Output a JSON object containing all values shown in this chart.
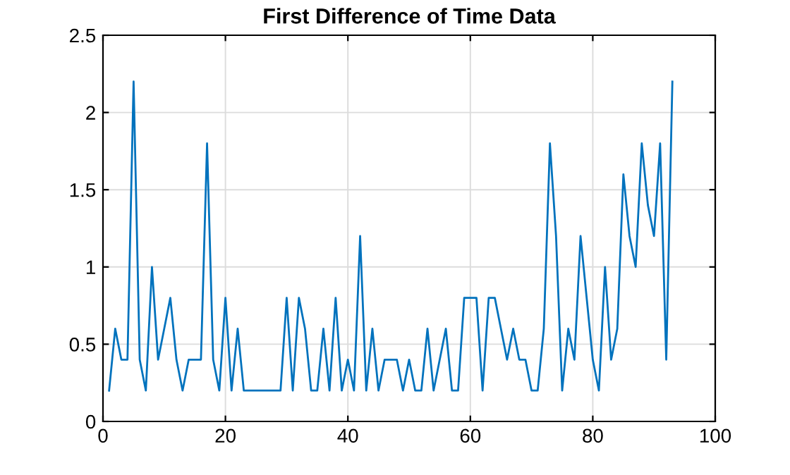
{
  "chart_data": {
    "type": "line",
    "title": "First Difference of Time Data",
    "x": [
      1,
      2,
      3,
      4,
      5,
      6,
      7,
      8,
      9,
      10,
      11,
      12,
      13,
      14,
      15,
      16,
      17,
      18,
      19,
      20,
      21,
      22,
      23,
      24,
      25,
      26,
      27,
      28,
      29,
      30,
      31,
      32,
      33,
      34,
      35,
      36,
      37,
      38,
      39,
      40,
      41,
      42,
      43,
      44,
      45,
      46,
      47,
      48,
      49,
      50,
      51,
      52,
      53,
      54,
      55,
      56,
      57,
      58,
      59,
      60,
      61,
      62,
      63,
      64,
      65,
      66,
      67,
      68,
      69,
      70,
      71,
      72,
      73,
      74,
      75,
      76,
      77,
      78,
      79,
      80,
      81,
      82,
      83,
      84,
      85,
      86,
      87,
      88,
      89,
      90,
      91,
      92,
      93
    ],
    "series": [
      {
        "color": "#0072bd",
        "values": [
          0.2,
          0.6,
          0.4,
          0.4,
          2.2,
          0.4,
          0.2,
          1.0,
          0.4,
          0.6,
          0.8,
          0.4,
          0.2,
          0.4,
          0.4,
          0.4,
          1.8,
          0.4,
          0.2,
          0.8,
          0.2,
          0.6,
          0.2,
          0.2,
          0.2,
          0.2,
          0.2,
          0.2,
          0.2,
          0.8,
          0.2,
          0.8,
          0.6,
          0.2,
          0.2,
          0.6,
          0.2,
          0.8,
          0.2,
          0.4,
          0.2,
          1.2,
          0.2,
          0.6,
          0.2,
          0.4,
          0.4,
          0.4,
          0.2,
          0.4,
          0.2,
          0.2,
          0.6,
          0.2,
          0.4,
          0.6,
          0.2,
          0.2,
          0.8,
          0.8,
          0.8,
          0.2,
          0.8,
          0.8,
          0.6,
          0.4,
          0.6,
          0.4,
          0.4,
          0.2,
          0.2,
          0.6,
          1.8,
          1.2,
          0.2,
          0.6,
          0.4,
          1.2,
          0.8,
          0.4,
          0.2,
          1.0,
          0.4,
          0.6,
          1.6,
          1.2,
          1.0,
          1.8,
          1.4,
          1.2,
          1.8,
          0.4,
          2.2
        ]
      }
    ],
    "xlim": [
      0,
      100
    ],
    "xticks": [
      0,
      20,
      40,
      60,
      80,
      100
    ],
    "ylim": [
      0,
      2.5
    ],
    "yticks": [
      0,
      0.5,
      1,
      1.5,
      2,
      2.5
    ],
    "grid": true
  }
}
